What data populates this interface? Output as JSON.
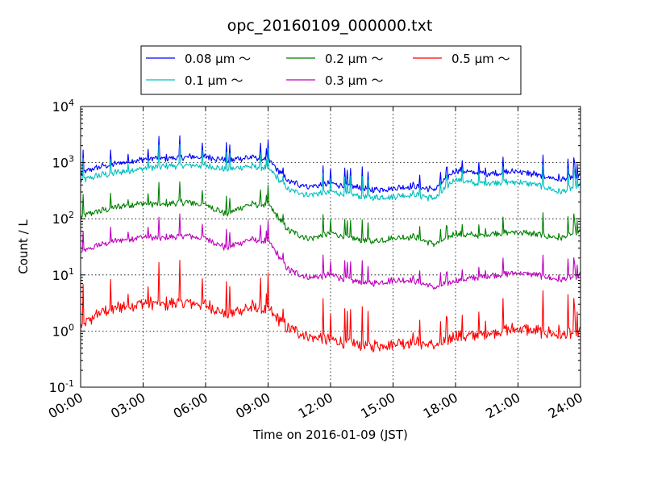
{
  "chart_data": {
    "type": "line",
    "title": "opc_20160109_000000.txt",
    "xlabel": "Time on 2016-01-09 (JST)",
    "ylabel": "Count / L",
    "yscale": "log",
    "xlim": [
      "00:00",
      "24:00"
    ],
    "ylim": [
      0.1,
      10000
    ],
    "grid": true,
    "legend_position": "top-center",
    "x_ticks": [
      "00:00",
      "03:00",
      "06:00",
      "09:00",
      "12:00",
      "15:00",
      "18:00",
      "21:00",
      "24:00"
    ],
    "y_ticks": [
      {
        "base": "10",
        "exp": "-1",
        "value": 0.1
      },
      {
        "base": "10",
        "exp": "0",
        "value": 1
      },
      {
        "base": "10",
        "exp": "1",
        "value": 10
      },
      {
        "base": "10",
        "exp": "2",
        "value": 100
      },
      {
        "base": "10",
        "exp": "3",
        "value": 1000
      },
      {
        "base": "10",
        "exp": "4",
        "value": 10000
      }
    ],
    "x_hours": [
      0,
      1,
      2,
      3,
      4,
      5,
      6,
      7,
      8,
      9,
      10,
      11,
      12,
      13,
      14,
      15,
      16,
      17,
      18,
      19,
      20,
      21,
      22,
      23,
      24
    ],
    "series": [
      {
        "name": "0.08 μm ～",
        "color": "#0000ff",
        "values": [
          650,
          850,
          1000,
          1150,
          1200,
          1250,
          1300,
          1100,
          1250,
          1150,
          450,
          380,
          420,
          380,
          330,
          350,
          380,
          330,
          750,
          650,
          650,
          700,
          600,
          500,
          600
        ]
      },
      {
        "name": "0.1 μm ～",
        "color": "#00bfbf",
        "values": [
          480,
          600,
          700,
          800,
          850,
          900,
          900,
          750,
          850,
          800,
          320,
          270,
          300,
          270,
          240,
          250,
          270,
          230,
          520,
          420,
          450,
          450,
          400,
          300,
          400
        ]
      },
      {
        "name": "0.2 μm ～",
        "color": "#008000",
        "values": [
          110,
          140,
          170,
          190,
          180,
          200,
          180,
          120,
          180,
          180,
          60,
          45,
          55,
          45,
          40,
          45,
          48,
          35,
          55,
          50,
          55,
          58,
          52,
          45,
          60
        ]
      },
      {
        "name": "0.3 μm ～",
        "color": "#bf00bf",
        "values": [
          25,
          35,
          42,
          48,
          45,
          50,
          45,
          30,
          42,
          40,
          12,
          9,
          10,
          8,
          7,
          8,
          8,
          6,
          8,
          9,
          10,
          11,
          10,
          8,
          10
        ]
      },
      {
        "name": "0.5 μm ～",
        "color": "#ff0000",
        "values": [
          1.2,
          2.2,
          2.8,
          3.2,
          3.0,
          3.2,
          3.0,
          2.0,
          2.6,
          2.4,
          1.1,
          0.8,
          0.7,
          0.6,
          0.55,
          0.6,
          0.65,
          0.55,
          0.8,
          0.85,
          1.0,
          1.1,
          1.0,
          0.85,
          0.95
        ]
      }
    ]
  }
}
